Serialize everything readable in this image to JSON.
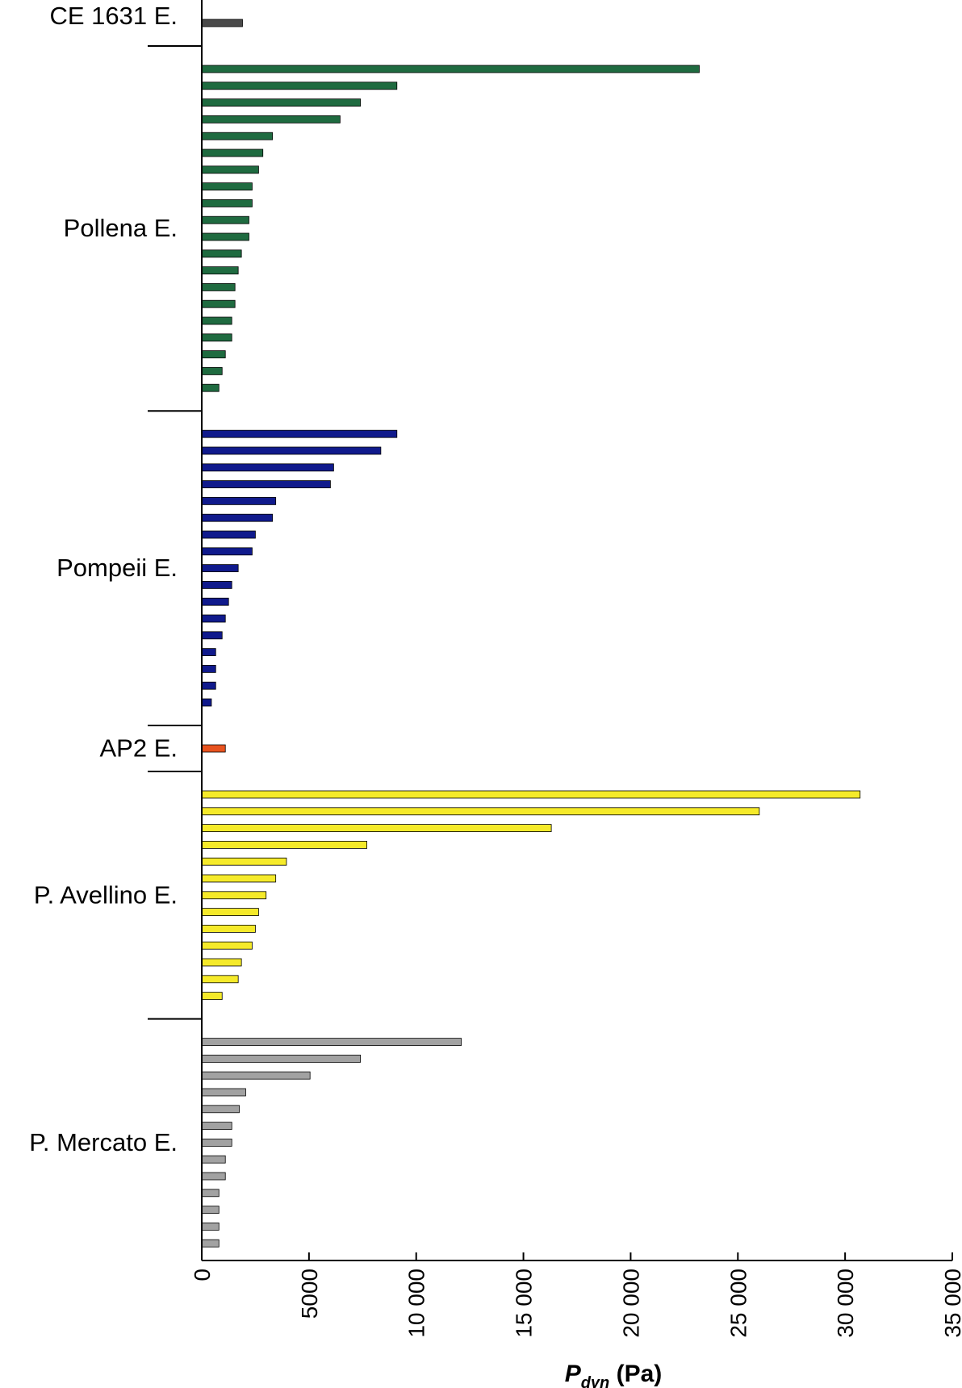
{
  "chart_data": {
    "type": "bar",
    "orientation": "horizontal",
    "xlabel": {
      "main": "P",
      "sub": "dyn",
      "unit": " (Pa)"
    },
    "xlim": [
      0,
      35000
    ],
    "xticks": [
      0,
      5000,
      10000,
      15000,
      20000,
      25000,
      30000,
      35000
    ],
    "xtick_labels": [
      "0",
      "5000",
      "10 000",
      "15 000",
      "20 000",
      "25 000",
      "30 000",
      "35 000"
    ],
    "grid": false,
    "groups": [
      {
        "name": "CE 1631 E.",
        "color": "#4a4a4a",
        "values": [
          1900
        ]
      },
      {
        "name": "Pollena E.",
        "color": "#1f6b40",
        "values": [
          23200,
          9100,
          7400,
          6450,
          3300,
          2850,
          2650,
          2350,
          2350,
          2200,
          2200,
          1850,
          1700,
          1550,
          1550,
          1400,
          1400,
          1100,
          950,
          800
        ]
      },
      {
        "name": "Pompeii E.",
        "color": "#101a8c",
        "values": [
          9100,
          8350,
          6150,
          6000,
          3450,
          3300,
          2500,
          2350,
          1700,
          1400,
          1250,
          1100,
          950,
          650,
          650,
          650,
          450
        ]
      },
      {
        "name": "AP2 E.",
        "color": "#e8531f",
        "values": [
          1100
        ]
      },
      {
        "name": "P. Avellino E.",
        "color": "#f5ea2a",
        "values": [
          30700,
          26000,
          16300,
          7700,
          3950,
          3450,
          3000,
          2650,
          2500,
          2350,
          1850,
          1700,
          950
        ]
      },
      {
        "name": "P. Mercato E.",
        "color": "#a2a2a2",
        "values": [
          12100,
          7400,
          5050,
          2050,
          1750,
          1400,
          1400,
          1100,
          1100,
          800,
          800,
          800,
          800
        ]
      }
    ]
  }
}
